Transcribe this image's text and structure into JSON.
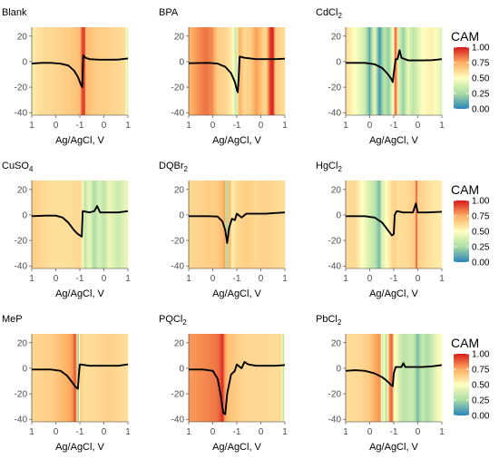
{
  "legend": {
    "title": "CAM",
    "ticks": [
      "1.00",
      "0.75",
      "0.50",
      "0.25",
      "0.00"
    ],
    "tick_values": [
      1.0,
      0.75,
      0.5,
      0.25,
      0.0
    ],
    "placement": "right",
    "colors": [
      "#d7191c",
      "#fdae61",
      "#ffffbf",
      "#abdda4",
      "#2b83ba"
    ]
  },
  "chart_data": [
    {
      "type": "line",
      "title": "Blank",
      "xlabel": "Ag/AgCl, V",
      "ylabel": "",
      "x_tick_labels": [
        "1",
        "0",
        "-1",
        "0",
        "1"
      ],
      "y_tick_labels": [
        "20",
        "0",
        "-20",
        "-40"
      ],
      "ylim": [
        -42,
        27
      ],
      "heat": [
        [
          0,
          0.55
        ],
        [
          0.08,
          0.6
        ],
        [
          0.2,
          0.62
        ],
        [
          0.4,
          0.66
        ],
        [
          0.5,
          0.7
        ],
        [
          0.52,
          0.88
        ],
        [
          0.53,
          0.95
        ],
        [
          0.55,
          0.92
        ],
        [
          0.56,
          0.72
        ],
        [
          0.65,
          0.66
        ],
        [
          0.8,
          0.64
        ],
        [
          0.98,
          0.6
        ],
        [
          0.99,
          0.3
        ],
        [
          1,
          0.55
        ]
      ],
      "curve": [
        [
          0,
          -1.5
        ],
        [
          0.1,
          -1
        ],
        [
          0.2,
          -1
        ],
        [
          0.3,
          -1.6
        ],
        [
          0.38,
          -3
        ],
        [
          0.44,
          -7
        ],
        [
          0.48,
          -12
        ],
        [
          0.51,
          -18
        ],
        [
          0.525,
          -20
        ],
        [
          0.535,
          5
        ],
        [
          0.56,
          3
        ],
        [
          0.6,
          2
        ],
        [
          0.7,
          1.5
        ],
        [
          0.8,
          1.5
        ],
        [
          0.9,
          1.6
        ],
        [
          1,
          2.5
        ]
      ]
    },
    {
      "type": "line",
      "title": "BPA",
      "xlabel": "Ag/AgCl, V",
      "ylabel": "",
      "x_tick_labels": [
        "1",
        "0",
        "-1",
        "0",
        "1"
      ],
      "y_tick_labels": [
        "20",
        "0",
        "-20",
        "-40"
      ],
      "ylim": [
        -42,
        27
      ],
      "heat": [
        [
          0,
          0.72
        ],
        [
          0.1,
          0.8
        ],
        [
          0.18,
          0.85
        ],
        [
          0.25,
          0.8
        ],
        [
          0.3,
          0.65
        ],
        [
          0.4,
          0.62
        ],
        [
          0.45,
          0.55
        ],
        [
          0.5,
          0.3
        ],
        [
          0.52,
          0.75
        ],
        [
          0.58,
          0.62
        ],
        [
          0.65,
          0.66
        ],
        [
          0.7,
          0.78
        ],
        [
          0.75,
          0.7
        ],
        [
          0.8,
          0.6
        ],
        [
          0.85,
          0.95
        ],
        [
          0.88,
          0.98
        ],
        [
          0.9,
          0.66
        ],
        [
          1,
          0.6
        ]
      ],
      "curve": [
        [
          0,
          -1.2
        ],
        [
          0.2,
          -1
        ],
        [
          0.3,
          -1.5
        ],
        [
          0.38,
          -4
        ],
        [
          0.44,
          -9
        ],
        [
          0.48,
          -16
        ],
        [
          0.5,
          -22
        ],
        [
          0.51,
          -24
        ],
        [
          0.52,
          -12
        ],
        [
          0.53,
          4
        ],
        [
          0.58,
          3
        ],
        [
          0.7,
          2
        ],
        [
          0.8,
          2
        ],
        [
          0.9,
          2
        ],
        [
          1,
          2.3
        ]
      ]
    },
    {
      "type": "line",
      "title": "CdCl",
      "title_sub": "2",
      "xlabel": "Ag/AgCl, V",
      "ylabel": "",
      "x_tick_labels": [
        "1",
        "0",
        "-1",
        "0",
        "1"
      ],
      "y_tick_labels": [
        "20",
        "0",
        "-20",
        "-40"
      ],
      "ylim": [
        -42,
        27
      ],
      "heat": [
        [
          0,
          0.6
        ],
        [
          0.1,
          0.5
        ],
        [
          0.2,
          0.35
        ],
        [
          0.25,
          0.1
        ],
        [
          0.3,
          0.45
        ],
        [
          0.35,
          0.05
        ],
        [
          0.4,
          0.3
        ],
        [
          0.45,
          0.2
        ],
        [
          0.5,
          0.55
        ],
        [
          0.52,
          0.95
        ],
        [
          0.55,
          0.4
        ],
        [
          0.6,
          0.2
        ],
        [
          0.65,
          0.45
        ],
        [
          0.7,
          0.3
        ],
        [
          0.8,
          0.5
        ],
        [
          0.9,
          0.55
        ],
        [
          1,
          0.4
        ]
      ],
      "curve": [
        [
          0,
          -1
        ],
        [
          0.2,
          -1
        ],
        [
          0.3,
          -2
        ],
        [
          0.38,
          -5
        ],
        [
          0.43,
          -9
        ],
        [
          0.47,
          -13
        ],
        [
          0.49,
          -16
        ],
        [
          0.5,
          -9
        ],
        [
          0.52,
          2
        ],
        [
          0.54,
          2
        ],
        [
          0.56,
          9
        ],
        [
          0.58,
          3
        ],
        [
          0.65,
          1
        ],
        [
          0.8,
          1
        ],
        [
          0.9,
          1.2
        ],
        [
          1,
          2
        ]
      ]
    },
    {
      "type": "line",
      "title": "CuSO",
      "title_sub": "4",
      "xlabel": "Ag/AgCl, V",
      "ylabel": "",
      "x_tick_labels": [
        "1",
        "0",
        "-1",
        "0",
        "1"
      ],
      "y_tick_labels": [
        "20",
        "0",
        "-20",
        "-40"
      ],
      "ylim": [
        -42,
        27
      ],
      "heat": [
        [
          0,
          0.65
        ],
        [
          0.2,
          0.6
        ],
        [
          0.4,
          0.6
        ],
        [
          0.5,
          0.62
        ],
        [
          0.53,
          0.55
        ],
        [
          0.55,
          0.3
        ],
        [
          0.6,
          0.45
        ],
        [
          0.65,
          0.25
        ],
        [
          0.7,
          0.4
        ],
        [
          0.75,
          0.3
        ],
        [
          0.8,
          0.45
        ],
        [
          0.9,
          0.35
        ],
        [
          1,
          0.45
        ]
      ],
      "curve": [
        [
          0,
          -1
        ],
        [
          0.15,
          -0.5
        ],
        [
          0.25,
          -0.5
        ],
        [
          0.32,
          -2
        ],
        [
          0.38,
          -6
        ],
        [
          0.44,
          -12
        ],
        [
          0.48,
          -15
        ],
        [
          0.5,
          -16
        ],
        [
          0.52,
          -17
        ],
        [
          0.53,
          3
        ],
        [
          0.6,
          2
        ],
        [
          0.65,
          3
        ],
        [
          0.68,
          7
        ],
        [
          0.71,
          2
        ],
        [
          0.8,
          2
        ],
        [
          0.9,
          2
        ],
        [
          1,
          3
        ]
      ]
    },
    {
      "type": "line",
      "title": "DQBr",
      "title_sub": "2",
      "xlabel": "Ag/AgCl, V",
      "ylabel": "",
      "x_tick_labels": [
        "1",
        "0",
        "-1",
        "0",
        "1"
      ],
      "y_tick_labels": [
        "20",
        "0",
        "-20",
        "-40"
      ],
      "ylim": [
        -42,
        27
      ],
      "heat": [
        [
          0,
          0.62
        ],
        [
          0.2,
          0.65
        ],
        [
          0.3,
          0.66
        ],
        [
          0.35,
          0.7
        ],
        [
          0.38,
          0.8
        ],
        [
          0.4,
          0.05
        ],
        [
          0.42,
          0.8
        ],
        [
          0.45,
          0.55
        ],
        [
          0.5,
          0.62
        ],
        [
          0.6,
          0.65
        ],
        [
          0.7,
          0.62
        ],
        [
          0.8,
          0.64
        ],
        [
          1,
          0.6
        ]
      ],
      "curve": [
        [
          0,
          -1
        ],
        [
          0.2,
          -1
        ],
        [
          0.3,
          -1.2
        ],
        [
          0.35,
          -5
        ],
        [
          0.38,
          -12
        ],
        [
          0.4,
          -22
        ],
        [
          0.42,
          -10
        ],
        [
          0.45,
          -3
        ],
        [
          0.48,
          -4
        ],
        [
          0.5,
          1
        ],
        [
          0.55,
          -2
        ],
        [
          0.6,
          1
        ],
        [
          0.7,
          1
        ],
        [
          0.8,
          1
        ],
        [
          0.9,
          1.5
        ],
        [
          1,
          2
        ]
      ]
    },
    {
      "type": "line",
      "title": "HgCl",
      "title_sub": "2",
      "xlabel": "Ag/AgCl, V",
      "ylabel": "",
      "x_tick_labels": [
        "1",
        "0",
        "-1",
        "0",
        "1"
      ],
      "y_tick_labels": [
        "20",
        "0",
        "-20",
        "-40"
      ],
      "ylim": [
        -42,
        27
      ],
      "heat": [
        [
          0,
          0.6
        ],
        [
          0.1,
          0.62
        ],
        [
          0.2,
          0.45
        ],
        [
          0.3,
          0.3
        ],
        [
          0.35,
          0.15
        ],
        [
          0.38,
          0.4
        ],
        [
          0.45,
          0.55
        ],
        [
          0.5,
          0.65
        ],
        [
          0.55,
          0.6
        ],
        [
          0.65,
          0.62
        ],
        [
          0.72,
          0.65
        ],
        [
          0.735,
          0.95
        ],
        [
          0.75,
          0.65
        ],
        [
          0.85,
          0.6
        ],
        [
          1,
          0.55
        ]
      ],
      "curve": [
        [
          0,
          -1
        ],
        [
          0.2,
          -1
        ],
        [
          0.3,
          -2
        ],
        [
          0.38,
          -6
        ],
        [
          0.44,
          -12
        ],
        [
          0.48,
          -16
        ],
        [
          0.5,
          -15
        ],
        [
          0.51,
          0
        ],
        [
          0.53,
          3
        ],
        [
          0.6,
          2
        ],
        [
          0.7,
          2
        ],
        [
          0.73,
          9
        ],
        [
          0.75,
          2
        ],
        [
          0.85,
          2
        ],
        [
          1,
          2.5
        ]
      ]
    },
    {
      "type": "line",
      "title": "MeP",
      "xlabel": "Ag/AgCl, V",
      "ylabel": "",
      "x_tick_labels": [
        "1",
        "0",
        "-1",
        "0",
        "1"
      ],
      "y_tick_labels": [
        "20",
        "0",
        "-20",
        "-40"
      ],
      "ylim": [
        -42,
        27
      ],
      "heat": [
        [
          0,
          0.62
        ],
        [
          0.2,
          0.65
        ],
        [
          0.3,
          0.7
        ],
        [
          0.38,
          0.75
        ],
        [
          0.42,
          0.78
        ],
        [
          0.45,
          0.9
        ],
        [
          0.47,
          0.75
        ],
        [
          0.48,
          0.1
        ],
        [
          0.5,
          0.65
        ],
        [
          0.55,
          0.6
        ],
        [
          0.7,
          0.62
        ],
        [
          0.8,
          0.64
        ],
        [
          1,
          0.6
        ]
      ],
      "curve": [
        [
          0,
          -1
        ],
        [
          0.2,
          -1
        ],
        [
          0.3,
          -2
        ],
        [
          0.37,
          -6
        ],
        [
          0.42,
          -11
        ],
        [
          0.46,
          -15
        ],
        [
          0.48,
          -16
        ],
        [
          0.49,
          -5
        ],
        [
          0.5,
          3
        ],
        [
          0.6,
          2
        ],
        [
          0.7,
          2
        ],
        [
          0.8,
          2
        ],
        [
          0.9,
          2
        ],
        [
          1,
          3
        ]
      ]
    },
    {
      "type": "line",
      "title": "PQCl",
      "title_sub": "2",
      "xlabel": "Ag/AgCl, V",
      "ylabel": "",
      "x_tick_labels": [
        "1",
        "0",
        "-1",
        "0",
        "1"
      ],
      "y_tick_labels": [
        "20",
        "0",
        "-20",
        "-40"
      ],
      "ylim": [
        -42,
        27
      ],
      "heat": [
        [
          0,
          0.78
        ],
        [
          0.2,
          0.82
        ],
        [
          0.3,
          0.85
        ],
        [
          0.33,
          0.9
        ],
        [
          0.35,
          0.98
        ],
        [
          0.37,
          0.82
        ],
        [
          0.4,
          0.7
        ],
        [
          0.5,
          0.65
        ],
        [
          0.6,
          0.62
        ],
        [
          0.8,
          0.62
        ],
        [
          0.97,
          0.6
        ],
        [
          0.98,
          0.2
        ],
        [
          1,
          0.6
        ]
      ],
      "curve": [
        [
          0,
          -1
        ],
        [
          0.15,
          -1
        ],
        [
          0.25,
          -2
        ],
        [
          0.3,
          -8
        ],
        [
          0.33,
          -20
        ],
        [
          0.36,
          -35
        ],
        [
          0.38,
          -36
        ],
        [
          0.4,
          -20
        ],
        [
          0.44,
          -5
        ],
        [
          0.48,
          -2
        ],
        [
          0.5,
          3
        ],
        [
          0.55,
          0
        ],
        [
          0.58,
          5
        ],
        [
          0.62,
          3
        ],
        [
          0.7,
          2
        ],
        [
          0.8,
          2
        ],
        [
          0.9,
          2
        ],
        [
          1,
          2.5
        ]
      ]
    },
    {
      "type": "line",
      "title": "PbCl",
      "title_sub": "2",
      "xlabel": "Ag/AgCl, V",
      "ylabel": "",
      "x_tick_labels": [
        "1",
        "0",
        "-1",
        "0",
        "1"
      ],
      "y_tick_labels": [
        "20",
        "0",
        "-20",
        "-40"
      ],
      "ylim": [
        -42,
        27
      ],
      "heat": [
        [
          0,
          0.6
        ],
        [
          0.15,
          0.62
        ],
        [
          0.25,
          0.66
        ],
        [
          0.3,
          0.75
        ],
        [
          0.36,
          0.8
        ],
        [
          0.38,
          0.3
        ],
        [
          0.4,
          0.6
        ],
        [
          0.42,
          0.2
        ],
        [
          0.45,
          0.75
        ],
        [
          0.48,
          0.92
        ],
        [
          0.5,
          0.55
        ],
        [
          0.55,
          0.4
        ],
        [
          0.6,
          0.3
        ],
        [
          0.7,
          0.35
        ],
        [
          0.75,
          0.15
        ],
        [
          0.8,
          0.35
        ],
        [
          0.85,
          0.25
        ],
        [
          0.95,
          0.45
        ],
        [
          1,
          0.5
        ]
      ],
      "curve": [
        [
          0,
          -2
        ],
        [
          0.1,
          -1.5
        ],
        [
          0.2,
          -2
        ],
        [
          0.3,
          -4
        ],
        [
          0.38,
          -7
        ],
        [
          0.43,
          -10
        ],
        [
          0.47,
          -13
        ],
        [
          0.49,
          -14
        ],
        [
          0.5,
          -4
        ],
        [
          0.52,
          1
        ],
        [
          0.58,
          1
        ],
        [
          0.6,
          4
        ],
        [
          0.62,
          1
        ],
        [
          0.7,
          1
        ],
        [
          0.8,
          1
        ],
        [
          0.9,
          1.5
        ],
        [
          1,
          2.5
        ]
      ]
    }
  ]
}
